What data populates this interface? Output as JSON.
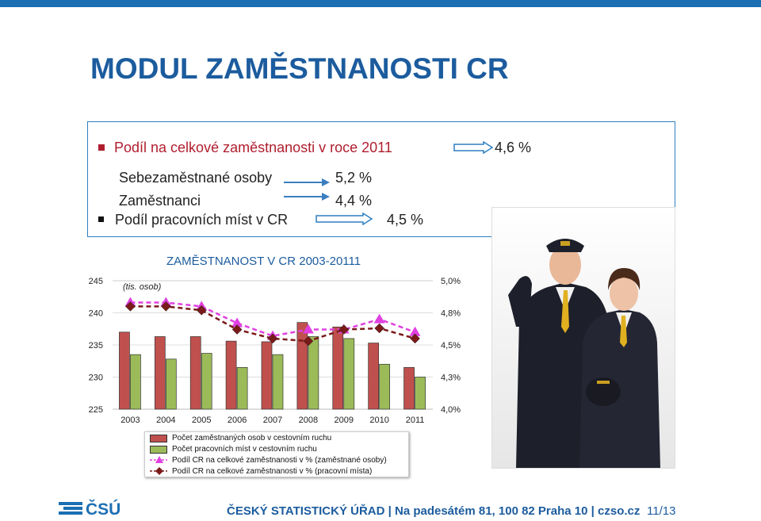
{
  "title": "MODUL ZAMĚSTNANOSTI CR",
  "box": {
    "line1_label": "Podíl na celkové zaměstnanosti v roce 2011",
    "line1_value": "4,6 %",
    "line2_label": "Sebezaměstnané osoby",
    "line2_value": "5,2 %",
    "line3_label": "Zaměstnanci",
    "line3_value": "4,4 %",
    "line4_label": "Podíl pracovních míst v CR",
    "line4_value": "4,5 %"
  },
  "chart_data": {
    "type": "bar",
    "title": "ZAMĚSTNANOST V CR 2003-20111",
    "unit_label": "(tis. osob)",
    "categories": [
      "2003",
      "2004",
      "2005",
      "2006",
      "2007",
      "2008",
      "2009",
      "2010",
      "2011"
    ],
    "y_left_ticks": [
      "245",
      "240",
      "235",
      "230",
      "225"
    ],
    "y_right_ticks": [
      "5,0%",
      "4,8%",
      "4,5%",
      "4,3%",
      "4,0%"
    ],
    "ylim_left": [
      225,
      245
    ],
    "ylim_right": [
      4.0,
      5.0
    ],
    "series": [
      {
        "name": "Počet zaměstnaných osob v cestovním ruchu",
        "type": "bar",
        "color": "#c0504d",
        "values": [
          237.0,
          236.3,
          236.3,
          235.6,
          235.5,
          238.5,
          237.8,
          235.3,
          231.5
        ]
      },
      {
        "name": "Počet pracovních míst v cestovním ruchu",
        "type": "bar",
        "color": "#9bbb59",
        "values": [
          233.5,
          232.8,
          233.7,
          231.5,
          233.5,
          236.3,
          236.0,
          232.0,
          230.0
        ]
      },
      {
        "name": "Podíl CR na celkové zaměstnanosti v % (zaměstnané osoby)",
        "type": "line",
        "color": "#e040e0",
        "values": [
          4.83,
          4.83,
          4.8,
          4.67,
          4.57,
          4.62,
          4.62,
          4.7,
          4.6
        ]
      },
      {
        "name": "Podíl CR na celkové zaměstnanosti v % (pracovní místa)",
        "type": "line",
        "color": "#7a1a1a",
        "values": [
          4.8,
          4.8,
          4.77,
          4.62,
          4.55,
          4.53,
          4.62,
          4.63,
          4.55
        ]
      }
    ]
  },
  "footer": {
    "text": "ČESKÝ STATISTICKÝ ÚŘAD  |  Na padesátém 81, 100 82 Praha 10  |  czso.cz",
    "page": "11/13",
    "logo_text": "ČSÚ"
  },
  "colors": {
    "accent": "#1c5c9e",
    "bullet": "#b01e2e"
  }
}
